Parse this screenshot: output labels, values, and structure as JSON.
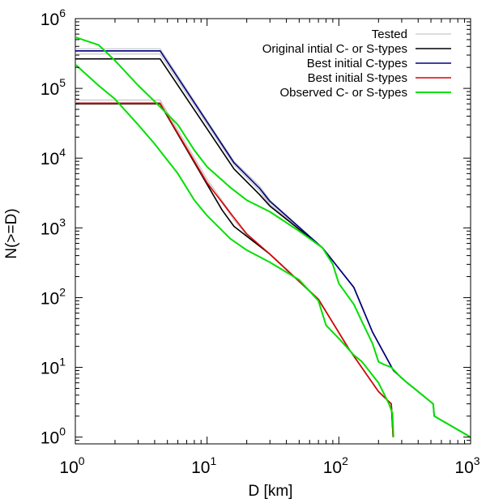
{
  "chart_data": {
    "type": "line",
    "title": "",
    "xlabel": "D [km]",
    "ylabel": "N(>=D)",
    "x_scale": "log",
    "y_scale": "log",
    "xlim": [
      1,
      1000
    ],
    "ylim": [
      0.8,
      1000000
    ],
    "grid": false,
    "legend_position": "top-right",
    "x_ticks": [
      {
        "base": "10",
        "exp": "0",
        "value": 1
      },
      {
        "base": "10",
        "exp": "1",
        "value": 10
      },
      {
        "base": "10",
        "exp": "2",
        "value": 100
      },
      {
        "base": "10",
        "exp": "3",
        "value": 1000
      }
    ],
    "y_ticks": [
      {
        "base": "10",
        "exp": "0",
        "value": 1
      },
      {
        "base": "10",
        "exp": "1",
        "value": 10
      },
      {
        "base": "10",
        "exp": "2",
        "value": 100
      },
      {
        "base": "10",
        "exp": "3",
        "value": 1000
      },
      {
        "base": "10",
        "exp": "4",
        "value": 10000
      },
      {
        "base": "10",
        "exp": "5",
        "value": 100000
      },
      {
        "base": "10",
        "exp": "6",
        "value": 1000000
      }
    ],
    "series": [
      {
        "name": "Tested",
        "color": "#bbbbbb",
        "width": 1,
        "lines": [
          [
            [
              1,
              370000
            ],
            [
              4.4,
              370000
            ],
            [
              16,
              9000
            ],
            [
              25,
              4000
            ],
            [
              30,
              2500
            ],
            [
              75,
              520
            ],
            [
              130,
              140
            ],
            [
              180,
              32
            ],
            [
              260,
              9
            ],
            [
              330,
              6
            ],
            [
              520,
              3
            ],
            [
              530,
              2
            ],
            [
              1000,
              1
            ]
          ],
          [
            [
              1,
              340000
            ],
            [
              4.4,
              340000
            ],
            [
              16,
              8500
            ],
            [
              25,
              3700
            ],
            [
              30,
              2200
            ],
            [
              75,
              520
            ],
            [
              130,
              140
            ],
            [
              180,
              32
            ],
            [
              260,
              9
            ],
            [
              330,
              6
            ],
            [
              520,
              3
            ],
            [
              530,
              2
            ],
            [
              1000,
              1
            ]
          ],
          [
            [
              1,
              310000
            ],
            [
              4.4,
              310000
            ],
            [
              16,
              8000
            ],
            [
              25,
              3400
            ],
            [
              30,
              2100
            ],
            [
              75,
              520
            ],
            [
              130,
              140
            ],
            [
              180,
              32
            ],
            [
              260,
              9
            ],
            [
              330,
              6
            ],
            [
              520,
              3
            ],
            [
              530,
              2
            ],
            [
              1000,
              1
            ]
          ],
          [
            [
              1,
              68000
            ],
            [
              4.4,
              68000
            ],
            [
              10,
              5000
            ],
            [
              16,
              1400
            ],
            [
              20,
              800
            ],
            [
              30,
              420
            ],
            [
              70,
              95
            ],
            [
              120,
              18
            ],
            [
              200,
              4.5
            ],
            [
              250,
              3
            ],
            [
              258,
              1
            ]
          ],
          [
            [
              1,
              63000
            ],
            [
              4.4,
              63000
            ],
            [
              10,
              4600
            ],
            [
              16,
              1300
            ],
            [
              20,
              780
            ],
            [
              30,
              410
            ],
            [
              70,
              92
            ],
            [
              120,
              18
            ],
            [
              200,
              4.5
            ],
            [
              250,
              3
            ],
            [
              258,
              1
            ]
          ]
        ]
      },
      {
        "name": "Original intial C- or S-types",
        "color": "#000000",
        "width": 1.6,
        "lines": [
          [
            [
              1,
              265000
            ],
            [
              4.4,
              265000
            ],
            [
              16,
              7000
            ],
            [
              25,
              3000
            ],
            [
              30,
              2050
            ],
            [
              75,
              520
            ],
            [
              130,
              140
            ],
            [
              180,
              32
            ],
            [
              260,
              9
            ],
            [
              330,
              6
            ],
            [
              520,
              3
            ],
            [
              530,
              2
            ],
            [
              1000,
              1
            ]
          ],
          [
            [
              1,
              60000
            ],
            [
              4.4,
              60000
            ],
            [
              10,
              4200
            ],
            [
              13,
              1800
            ],
            [
              16,
              1050
            ],
            [
              20,
              760
            ],
            [
              30,
              420
            ],
            [
              70,
              95
            ],
            [
              120,
              18
            ],
            [
              200,
              4.5
            ],
            [
              250,
              3
            ],
            [
              258,
              1
            ]
          ]
        ]
      },
      {
        "name": "Best initial C-types",
        "color": "#000080",
        "width": 1.6,
        "lines": [
          [
            [
              1,
              345000
            ],
            [
              4.4,
              345000
            ],
            [
              16,
              8600
            ],
            [
              25,
              3700
            ],
            [
              30,
              2400
            ],
            [
              75,
              520
            ],
            [
              130,
              140
            ],
            [
              180,
              32
            ],
            [
              260,
              9
            ],
            [
              330,
              6
            ],
            [
              520,
              3
            ],
            [
              530,
              2
            ],
            [
              1000,
              1
            ]
          ]
        ]
      },
      {
        "name": "Best initial S-types",
        "color": "#e00000",
        "width": 1.6,
        "lines": [
          [
            [
              1,
              61000
            ],
            [
              4.4,
              61000
            ],
            [
              10,
              4400
            ],
            [
              16,
              1400
            ],
            [
              20,
              820
            ],
            [
              30,
              420
            ],
            [
              70,
              95
            ],
            [
              120,
              18
            ],
            [
              200,
              4.5
            ],
            [
              250,
              3
            ],
            [
              258,
              1
            ]
          ]
        ]
      },
      {
        "name": "Observed C- or S-types",
        "color": "#00e000",
        "width": 2,
        "lines": [
          [
            [
              1,
              540000
            ],
            [
              1.5,
              420000
            ],
            [
              2,
              250000
            ],
            [
              3,
              110000
            ],
            [
              4,
              65000
            ],
            [
              6,
              30000
            ],
            [
              8,
              13000
            ],
            [
              10,
              7500
            ],
            [
              15,
              3800
            ],
            [
              20,
              2500
            ],
            [
              30,
              1700
            ],
            [
              50,
              900
            ],
            [
              75,
              520
            ],
            [
              90,
              300
            ],
            [
              100,
              160
            ],
            [
              130,
              80
            ],
            [
              150,
              45
            ],
            [
              180,
              22
            ],
            [
              200,
              12
            ],
            [
              220,
              11
            ],
            [
              250,
              10
            ],
            [
              300,
              7
            ],
            [
              400,
              4.5
            ],
            [
              520,
              3
            ],
            [
              530,
              2
            ],
            [
              1000,
              1
            ]
          ],
          [
            [
              1,
              220000
            ],
            [
              1.5,
              110000
            ],
            [
              2,
              70000
            ],
            [
              3,
              30000
            ],
            [
              4,
              16000
            ],
            [
              6,
              6000
            ],
            [
              8,
              2500
            ],
            [
              10,
              1500
            ],
            [
              15,
              700
            ],
            [
              20,
              480
            ],
            [
              30,
              320
            ],
            [
              50,
              180
            ],
            [
              70,
              90
            ],
            [
              80,
              40
            ],
            [
              100,
              26
            ],
            [
              130,
              15
            ],
            [
              150,
              12
            ],
            [
              200,
              6
            ],
            [
              240,
              3
            ],
            [
              255,
              2.2
            ],
            [
              260,
              1
            ]
          ]
        ]
      }
    ]
  }
}
